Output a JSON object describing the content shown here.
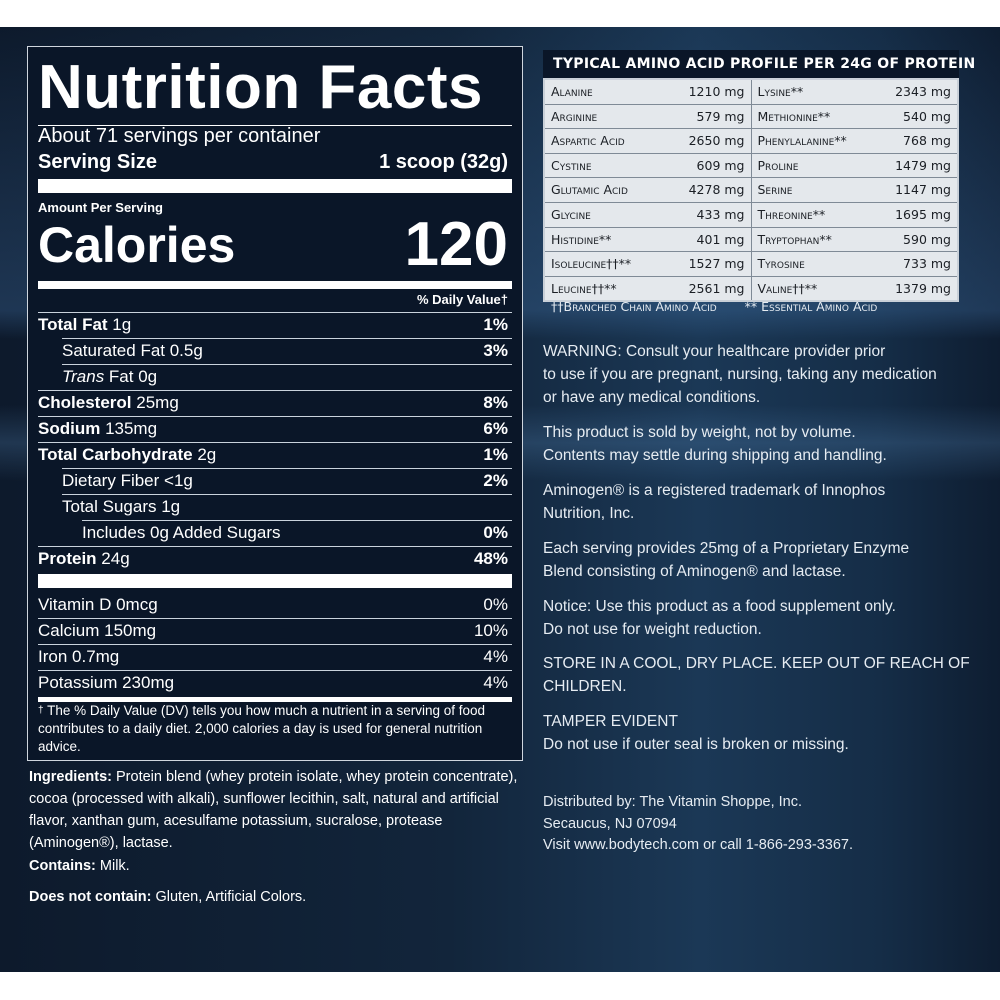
{
  "nutrition": {
    "title": "Nutrition Facts",
    "servings": "About 71 servings per container",
    "serving_size_label": "Serving Size",
    "serving_size_value": "1 scoop (32g)",
    "amount_per_serving": "Amount Per Serving",
    "calories_label": "Calories",
    "calories_value": "120",
    "dv_header": "% Daily Value†",
    "rows": [
      {
        "label": "Total Fat",
        "amount": " 1g",
        "dv": "1%"
      },
      {
        "label": "Saturated Fat 0.5g",
        "dv": "3%"
      },
      {
        "label_italic": "Trans",
        "label": " Fat 0g",
        "dv": ""
      },
      {
        "label": "Cholesterol",
        "amount": " 25mg",
        "dv": "8%"
      },
      {
        "label": "Sodium",
        "amount": " 135mg",
        "dv": "6%"
      },
      {
        "label": "Total Carbohydrate",
        "amount": " 2g",
        "dv": "1%"
      },
      {
        "label": "Dietary Fiber <1g",
        "dv": "2%"
      },
      {
        "label": "Total Sugars 1g",
        "dv": ""
      },
      {
        "label": "Includes 0g Added Sugars",
        "dv": "0%"
      },
      {
        "label": "Protein",
        "amount": " 24g",
        "dv": "48%"
      }
    ],
    "vitamins": [
      {
        "label": "Vitamin D 0mcg",
        "dv": "0%"
      },
      {
        "label": "Calcium 150mg",
        "dv": "10%"
      },
      {
        "label": "Iron 0.7mg",
        "dv": "4%"
      },
      {
        "label": "Potassium 230mg",
        "dv": "4%"
      }
    ],
    "footnote_mark": "†",
    "footnote": "The % Daily Value (DV) tells you how much a nutrient in a serving of food contributes to a daily diet. 2,000 calories a day is used for general nutrition advice."
  },
  "ingredients": {
    "label": "Ingredients:",
    "text": " Protein blend (whey protein isolate, whey protein concentrate), cocoa (processed with alkali), sunflower lecithin, salt, natural and artificial flavor, xanthan gum, acesulfame potassium, sucralose, protease (Aminogen®), lactase.",
    "contains_label": "Contains:",
    "contains_text": " Milk.",
    "not_contain_label": "Does not contain:",
    "not_contain_text": " Gluten, Artificial Colors."
  },
  "amino": {
    "title": "TYPICAL AMINO ACID PROFILE PER 24G OF PROTEIN",
    "rows": [
      [
        {
          "name": "Alanine",
          "value": "1210 mg"
        },
        {
          "name": "Lysine**",
          "value": "2343 mg"
        }
      ],
      [
        {
          "name": "Arginine",
          "value": "579 mg"
        },
        {
          "name": "Methionine**",
          "value": "540 mg"
        }
      ],
      [
        {
          "name": "Aspartic Acid",
          "value": "2650 mg"
        },
        {
          "name": "Phenylalanine**",
          "value": "768 mg"
        }
      ],
      [
        {
          "name": "Cystine",
          "value": "609 mg"
        },
        {
          "name": "Proline",
          "value": "1479 mg"
        }
      ],
      [
        {
          "name": "Glutamic Acid",
          "value": "4278 mg"
        },
        {
          "name": "Serine",
          "value": "1147 mg"
        }
      ],
      [
        {
          "name": "Glycine",
          "value": "433 mg"
        },
        {
          "name": "Threonine**",
          "value": "1695 mg"
        }
      ],
      [
        {
          "name": "Histidine**",
          "value": "401 mg"
        },
        {
          "name": "Tryptophan**",
          "value": "590 mg"
        }
      ],
      [
        {
          "name": "Isoleucine††**",
          "value": "1527 mg"
        },
        {
          "name": "Tyrosine",
          "value": "733 mg"
        }
      ],
      [
        {
          "name": "Leucine††**",
          "value": "2561 mg"
        },
        {
          "name": "Valine††**",
          "value": "1379 mg"
        }
      ]
    ],
    "footnote_bcaa": "††Branched Chain Amino Acid",
    "footnote_eaa": "** Essential Amino Acid"
  },
  "notices": {
    "warning": "WARNING: Consult your healthcare provider prior\nto use if you are pregnant, nursing, taking any medication\nor have any medical conditions.",
    "weight": "This product is sold by weight, not by volume.\nContents may settle during shipping and handling.",
    "aminogen": "Aminogen® is a registered trademark of Innophos\nNutrition, Inc.",
    "enzyme": "Each serving provides 25mg of a Proprietary Enzyme\nBlend consisting of Aminogen® and lactase.",
    "notice": "Notice: Use this product as a food supplement only.\nDo not use for weight reduction.",
    "store": "STORE IN A COOL, DRY PLACE. KEEP OUT OF REACH OF\nCHILDREN.",
    "tamper": "TAMPER EVIDENT\nDo not use if outer seal is broken or missing.",
    "distributed": "Distributed by: The Vitamin Shoppe, Inc.\nSecaucus, NJ 07094\nVisit www.bodytech.com or call 1-866-293-3367."
  }
}
